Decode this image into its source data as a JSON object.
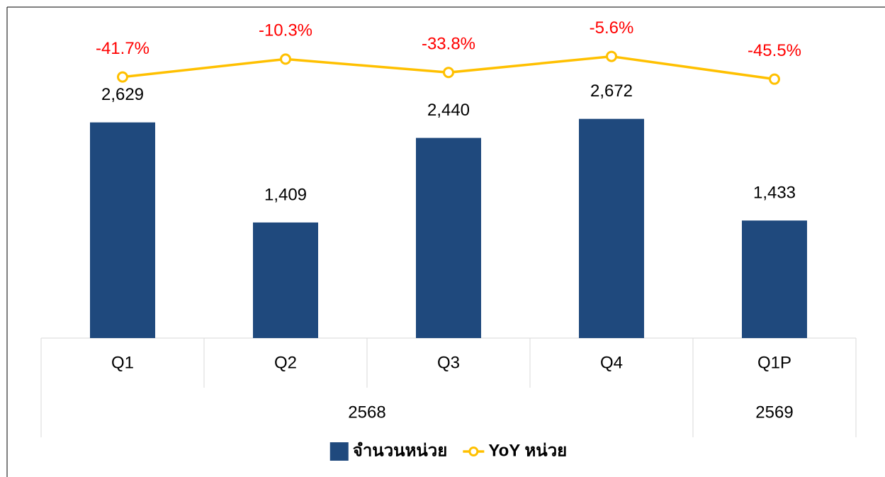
{
  "chart_data": {
    "type": "bar_line",
    "categories": [
      "Q1",
      "Q2",
      "Q3",
      "Q4",
      "Q1P"
    ],
    "group_labels": [
      "2568",
      null,
      null,
      null,
      "2569"
    ],
    "series": [
      {
        "name": "จำนวนหน่วย",
        "type": "bar",
        "color": "#1f497d",
        "values": [
          2629,
          1409,
          2440,
          2672,
          1433
        ],
        "value_labels": [
          "2,629",
          "1,409",
          "2,440",
          "2,672",
          "1,433"
        ]
      },
      {
        "name": "YoY หน่วย",
        "type": "line",
        "axis": "y2",
        "color": "#ffc000",
        "label_color": "#ff0000",
        "values": [
          -41.7,
          -10.3,
          -33.8,
          -5.6,
          -45.5
        ],
        "value_labels": [
          "-41.7%",
          "-10.3%",
          "-33.8%",
          "-5.6%",
          "-45.5%"
        ]
      }
    ],
    "ylim": [
      0,
      4000
    ],
    "y2lim": [
      -500,
      76
    ],
    "legend": "bottom"
  }
}
